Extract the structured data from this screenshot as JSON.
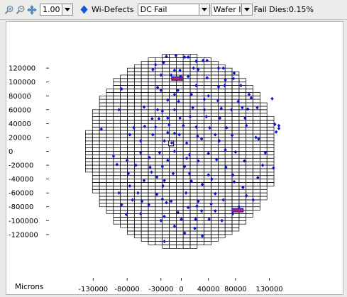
{
  "toolbar": {
    "zoom_value": "1.00",
    "defect_layer_label": "Wi-Defects",
    "filter_value": "DC Fail",
    "label_value": "Wafer Id",
    "fail_dies_text": "Fail Dies:0.15%"
  },
  "colors": {
    "defect": "#1010e0",
    "highlight": "#b02050",
    "grid": "#000000",
    "panel": "#ffffff",
    "background": "#e9e9e7"
  },
  "chart_data": {
    "type": "scatter",
    "xlabel": "Microns",
    "ylabel": "",
    "x_ticks": [
      -130000,
      -80000,
      -30000,
      0,
      40000,
      80000,
      130000
    ],
    "x_tick_labels": [
      "-130000",
      "-80000",
      "-30000",
      "0",
      "40000",
      "80000",
      "130000"
    ],
    "y_ticks": [
      120000,
      100000,
      80000,
      60000,
      40000,
      20000,
      0,
      -20000,
      -40000,
      -60000,
      -80000,
      -100000,
      -120000
    ],
    "y_tick_labels": [
      "120000",
      "100000",
      "80000",
      "60000",
      "40000",
      "20000",
      "0",
      "-20000",
      "-40000",
      "-60000",
      "-80000",
      "-100000",
      "-120000"
    ],
    "xlim": [
      -155000,
      155000
    ],
    "ylim": [
      -142000,
      143000
    ],
    "wafer": {
      "die_width": 10300,
      "die_height": 5000,
      "x_origin": -162000,
      "y_origin": -140000,
      "cols": 32,
      "rows": 57,
      "radius": 140000
    },
    "highlighted_dies": [
      {
        "x": -6000,
        "y": 105000
      },
      {
        "x": 83000,
        "y": -85000
      }
    ],
    "selected_die": {
      "x": -15000,
      "y": 11500
    },
    "defect_points": [
      [
        -22000,
        137000
      ],
      [
        -8000,
        138000
      ],
      [
        5000,
        136000
      ],
      [
        10000,
        136000
      ],
      [
        22000,
        130000
      ],
      [
        32000,
        131000
      ],
      [
        38000,
        131000
      ],
      [
        -38000,
        125000
      ],
      [
        -26000,
        128000
      ],
      [
        -42000,
        118000
      ],
      [
        -10000,
        117000
      ],
      [
        -2000,
        117000
      ],
      [
        18000,
        120000
      ],
      [
        25000,
        118000
      ],
      [
        55000,
        120000
      ],
      [
        62000,
        120000
      ],
      [
        78000,
        113000
      ],
      [
        -30000,
        110000
      ],
      [
        -15000,
        110000
      ],
      [
        -1000,
        108000
      ],
      [
        10000,
        108000
      ],
      [
        38000,
        106000
      ],
      [
        65000,
        103000
      ],
      [
        77000,
        105000
      ],
      [
        -88000,
        90000
      ],
      [
        -35000,
        92000
      ],
      [
        -30000,
        88000
      ],
      [
        22000,
        95000
      ],
      [
        55000,
        93000
      ],
      [
        64000,
        95000
      ],
      [
        88000,
        95000
      ],
      [
        -5000,
        88000
      ],
      [
        -10000,
        82000
      ],
      [
        15000,
        82000
      ],
      [
        40000,
        80000
      ],
      [
        100000,
        82000
      ],
      [
        103000,
        77000
      ],
      [
        134000,
        76000
      ],
      [
        -20000,
        74000
      ],
      [
        -4000,
        72000
      ],
      [
        34000,
        75000
      ],
      [
        54000,
        73000
      ],
      [
        84000,
        72000
      ],
      [
        -92000,
        60000
      ],
      [
        -55000,
        64000
      ],
      [
        -35000,
        60000
      ],
      [
        -28000,
        58000
      ],
      [
        -10000,
        60000
      ],
      [
        17000,
        63000
      ],
      [
        34000,
        60000
      ],
      [
        59000,
        62000
      ],
      [
        74000,
        60000
      ],
      [
        90000,
        63000
      ],
      [
        98000,
        61000
      ],
      [
        112000,
        63000
      ],
      [
        -43000,
        47000
      ],
      [
        -33000,
        47000
      ],
      [
        -20000,
        48000
      ],
      [
        -2000,
        48000
      ],
      [
        13000,
        50000
      ],
      [
        37000,
        50000
      ],
      [
        57000,
        48000
      ],
      [
        94000,
        48000
      ],
      [
        -118000,
        32000
      ],
      [
        -70000,
        34000
      ],
      [
        -54000,
        36000
      ],
      [
        -38000,
        35000
      ],
      [
        -18000,
        38000
      ],
      [
        3000,
        37000
      ],
      [
        22000,
        35000
      ],
      [
        42000,
        34000
      ],
      [
        67000,
        34000
      ],
      [
        96000,
        37000
      ],
      [
        138000,
        39000
      ],
      [
        144000,
        37000
      ],
      [
        -76000,
        24000
      ],
      [
        -42000,
        24000
      ],
      [
        -20000,
        27000
      ],
      [
        -10000,
        26000
      ],
      [
        -3000,
        24000
      ],
      [
        24000,
        22000
      ],
      [
        50000,
        24000
      ],
      [
        75000,
        23000
      ],
      [
        110000,
        20000
      ],
      [
        140000,
        28000
      ],
      [
        144000,
        33000
      ],
      [
        -60000,
        15000
      ],
      [
        -25000,
        15000
      ],
      [
        -14000,
        12000
      ],
      [
        8000,
        12000
      ],
      [
        30000,
        18000
      ],
      [
        56000,
        15000
      ],
      [
        114000,
        18000
      ],
      [
        -100000,
        -7000
      ],
      [
        -60000,
        -2000
      ],
      [
        -32000,
        -2000
      ],
      [
        -10000,
        0
      ],
      [
        12000,
        -5000
      ],
      [
        40000,
        -3000
      ],
      [
        65000,
        2000
      ],
      [
        80000,
        -1000
      ],
      [
        124000,
        -2000
      ],
      [
        -80000,
        -13000
      ],
      [
        -47000,
        -9000
      ],
      [
        -20000,
        -13000
      ],
      [
        8000,
        -10000
      ],
      [
        25000,
        -14000
      ],
      [
        52000,
        -12000
      ],
      [
        93000,
        -14000
      ],
      [
        -95000,
        -19000
      ],
      [
        -67000,
        -20000
      ],
      [
        -46000,
        -23000
      ],
      [
        -28000,
        -22000
      ],
      [
        5000,
        -22000
      ],
      [
        66000,
        -23000
      ],
      [
        120000,
        -20000
      ],
      [
        136000,
        -24000
      ],
      [
        -78000,
        -32000
      ],
      [
        -44000,
        -30000
      ],
      [
        -36000,
        -37000
      ],
      [
        -12000,
        -32000
      ],
      [
        12000,
        -32000
      ],
      [
        40000,
        -34000
      ],
      [
        76000,
        -34000
      ],
      [
        113000,
        -38000
      ],
      [
        -55000,
        -42000
      ],
      [
        -25000,
        -42000
      ],
      [
        15000,
        -43000
      ],
      [
        45000,
        -40000
      ],
      [
        78000,
        -44000
      ],
      [
        -76000,
        -50000
      ],
      [
        -27000,
        -50000
      ],
      [
        31000,
        -48000
      ],
      [
        91000,
        -52000
      ],
      [
        -92000,
        -60000
      ],
      [
        -64000,
        -60000
      ],
      [
        -36000,
        -62000
      ],
      [
        7000,
        -60000
      ],
      [
        50000,
        -61000
      ],
      [
        96000,
        -64000
      ],
      [
        -72000,
        -70000
      ],
      [
        -58000,
        -72000
      ],
      [
        -28000,
        -69000
      ],
      [
        -15000,
        -72000
      ],
      [
        25000,
        -72000
      ],
      [
        62000,
        -70000
      ],
      [
        106000,
        -70000
      ],
      [
        -88000,
        -77000
      ],
      [
        -48000,
        -77000
      ],
      [
        -22000,
        -74000
      ],
      [
        10000,
        -81000
      ],
      [
        23000,
        -79000
      ],
      [
        44000,
        -76000
      ],
      [
        85000,
        -80000
      ],
      [
        -81000,
        -91000
      ],
      [
        -60000,
        -90000
      ],
      [
        -25000,
        -94000
      ],
      [
        -5000,
        -88000
      ],
      [
        30000,
        -86000
      ],
      [
        50000,
        -86000
      ],
      [
        76000,
        -90000
      ],
      [
        -30000,
        -100000
      ],
      [
        0,
        -98000
      ],
      [
        21000,
        -98000
      ],
      [
        41000,
        -98000
      ],
      [
        60000,
        -100000
      ],
      [
        -10000,
        -108000
      ],
      [
        20000,
        -111000
      ],
      [
        5000,
        -118000
      ],
      [
        31000,
        -122000
      ],
      [
        -25000,
        -130000
      ]
    ]
  }
}
